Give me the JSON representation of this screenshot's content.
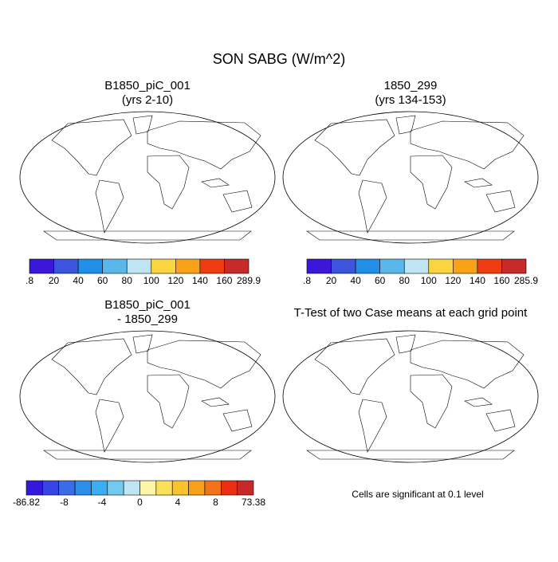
{
  "title": "SON SABG (W/m^2)",
  "panels": [
    {
      "title": "B1850_piC_001",
      "subtitle": "(yrs 2-10)",
      "colorbar": {
        "colors": [
          "#3a17d9",
          "#3d55dc",
          "#1f8fe8",
          "#5ab7ea",
          "#bfe4f3",
          "#f9d63f",
          "#f8a21a",
          "#ef3c10",
          "#c62a29"
        ],
        "labels": [
          ".8",
          "20",
          "40",
          "60",
          "80",
          "100",
          "120",
          "140",
          "160",
          "289.9"
        ]
      }
    },
    {
      "title": "1850_299",
      "subtitle": "(yrs 134-153)",
      "colorbar": {
        "colors": [
          "#3a17d9",
          "#3d55dc",
          "#1f8fe8",
          "#5ab7ea",
          "#bfe4f3",
          "#f9d63f",
          "#f8a21a",
          "#ef3c10",
          "#c62a29"
        ],
        "labels": [
          ".8",
          "20",
          "40",
          "60",
          "80",
          "100",
          "120",
          "140",
          "160",
          "285.9"
        ]
      }
    },
    {
      "title": "B1850_piC_001",
      "subtitle": "- 1850_299",
      "colorbar": {
        "colors": [
          "#3419dc",
          "#3546e4",
          "#3b6be6",
          "#2a8eea",
          "#3aaef0",
          "#73caf0",
          "#bfe5f5",
          "#fdf6a6",
          "#fbe05a",
          "#fbc32b",
          "#f8a01b",
          "#f3731a",
          "#ea2e12",
          "#c9282b"
        ],
        "labels": [
          "-86.82",
          "-8",
          "-4",
          "0",
          "4",
          "8",
          "73.38"
        ]
      }
    },
    {
      "title": "T-Test of two Case means at each grid point",
      "note": "Cells are significant at 0.1 level"
    }
  ]
}
